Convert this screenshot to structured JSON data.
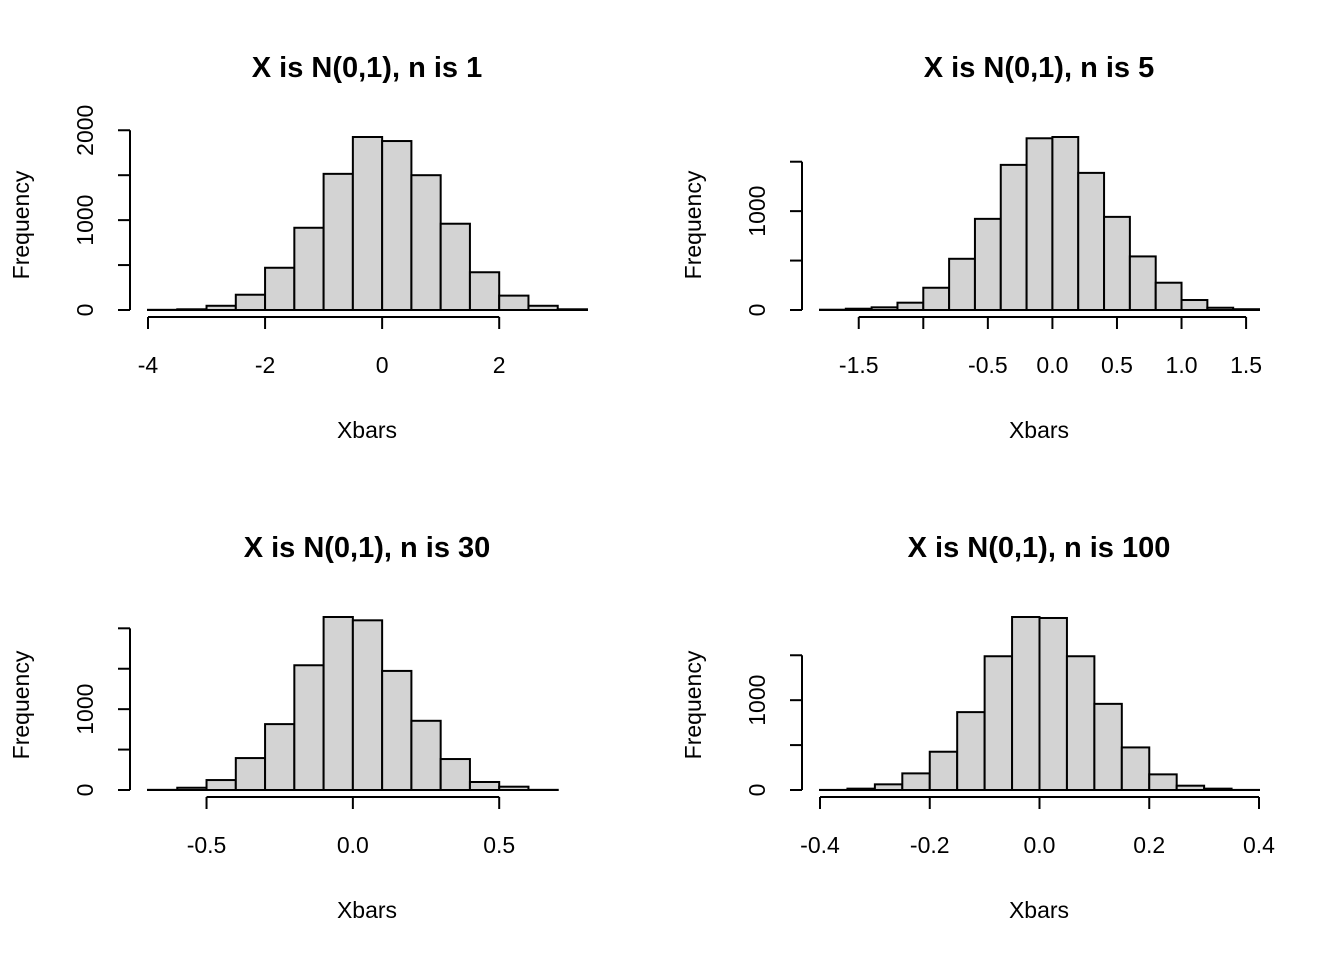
{
  "chart_data": [
    {
      "type": "bar",
      "title": "X is N(0,1), n is 1",
      "xlabel": "Xbars",
      "ylabel": "Frequency",
      "fill_color": "#d3d3d3",
      "xlim": [
        -4,
        3.5
      ],
      "breaks": [
        -4,
        -3.5,
        -3,
        -2.5,
        -2,
        -1.5,
        -1,
        -0.5,
        0,
        0.5,
        1,
        1.5,
        2,
        2.5,
        3,
        3.5
      ],
      "values": [
        2,
        8,
        47,
        170,
        470,
        915,
        1515,
        1925,
        1880,
        1500,
        960,
        420,
        160,
        47,
        8
      ],
      "x_ticks": [
        -4,
        -2,
        0,
        2
      ],
      "x_tick_labels": [
        "-4",
        "-2",
        "0",
        "2"
      ],
      "y_ticks": [
        0,
        500,
        1000,
        1500,
        2000
      ],
      "y_tick_labels": [
        "0",
        "",
        "1000",
        "",
        "2000"
      ]
    },
    {
      "type": "bar",
      "title": "X is N(0,1), n is 5",
      "xlabel": "Xbars",
      "ylabel": "Frequency",
      "fill_color": "#d3d3d3",
      "xlim": [
        -1.8,
        1.6
      ],
      "breaks": [
        -1.8,
        -1.6,
        -1.4,
        -1.2,
        -1.0,
        -0.8,
        -0.6,
        -0.4,
        -0.2,
        0,
        0.2,
        0.4,
        0.6,
        0.8,
        1.0,
        1.2,
        1.4,
        1.6
      ],
      "values": [
        3,
        13,
        27,
        74,
        225,
        518,
        922,
        1468,
        1737,
        1750,
        1387,
        942,
        542,
        276,
        101,
        23,
        8
      ],
      "x_ticks": [
        -1.5,
        -1.0,
        -0.5,
        0,
        0.5,
        1.0,
        1.5
      ],
      "x_tick_labels": [
        "-1.5",
        "",
        "-0.5",
        "0.0",
        "0.5",
        "1.0",
        "1.5"
      ],
      "y_ticks": [
        0,
        500,
        1000,
        1500
      ],
      "y_tick_labels": [
        "0",
        "",
        "1000",
        ""
      ]
    },
    {
      "type": "bar",
      "title": "X is N(0,1), n is 30",
      "xlabel": "Xbars",
      "ylabel": "Frequency",
      "fill_color": "#d3d3d3",
      "xlim": [
        -0.7,
        0.8
      ],
      "breaks": [
        -0.7,
        -0.6,
        -0.5,
        -0.4,
        -0.3,
        -0.2,
        -0.1,
        0,
        0.1,
        0.2,
        0.3,
        0.4,
        0.5,
        0.6,
        0.7,
        0.8
      ],
      "values": [
        2,
        28,
        123,
        395,
        815,
        1543,
        2140,
        2099,
        1473,
        856,
        383,
        99,
        41,
        2,
        0
      ],
      "x_ticks": [
        -0.5,
        0,
        0.5
      ],
      "x_tick_labels": [
        "-0.5",
        "0.0",
        "0.5"
      ],
      "y_ticks": [
        0,
        500,
        1000,
        1500,
        2000
      ],
      "y_tick_labels": [
        "0",
        "",
        "1000",
        "",
        ""
      ]
    },
    {
      "type": "bar",
      "title": "X is N(0,1), n is 100",
      "xlabel": "Xbars",
      "ylabel": "Frequency",
      "fill_color": "#d3d3d3",
      "xlim": [
        -0.4,
        0.4
      ],
      "breaks": [
        -0.4,
        -0.35,
        -0.3,
        -0.25,
        -0.2,
        -0.15,
        -0.1,
        -0.05,
        0,
        0.05,
        0.1,
        0.15,
        0.2,
        0.25,
        0.3,
        0.35,
        0.4
      ],
      "values": [
        1,
        15,
        63,
        185,
        426,
        867,
        1489,
        1926,
        1915,
        1489,
        959,
        474,
        174,
        48,
        15,
        1
      ],
      "x_ticks": [
        -0.4,
        -0.2,
        0,
        0.2,
        0.4
      ],
      "x_tick_labels": [
        "-0.4",
        "-0.2",
        "0.0",
        "0.2",
        "0.4"
      ],
      "y_ticks": [
        0,
        500,
        1000,
        1500
      ],
      "y_tick_labels": [
        "0",
        "",
        "1000",
        ""
      ]
    }
  ]
}
